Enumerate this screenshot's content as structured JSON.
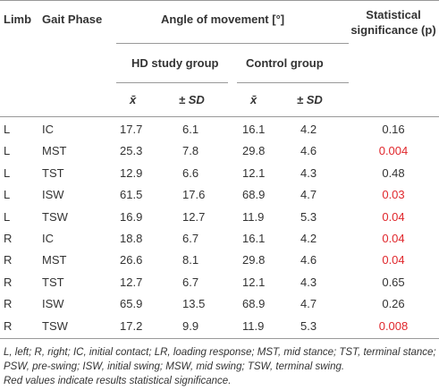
{
  "table": {
    "headers": {
      "limb": "Limb",
      "gait_phase": "Gait Phase",
      "angle": "Angle of movement [°]",
      "significance": "Statistical significance (p)",
      "hd": "HD study group",
      "control": "Control group",
      "mean_hd": "x̄",
      "sd_hd": "± SD",
      "mean_control": "x̄",
      "sd_control": "± SD"
    },
    "rows": [
      [
        "L",
        "IC",
        "17.7",
        "6.1",
        "16.1",
        "4.2",
        "0.16"
      ],
      [
        "L",
        "MST",
        "25.3",
        "7.8",
        "29.8",
        "4.6",
        "0.004"
      ],
      [
        "L",
        "TST",
        "12.9",
        "6.6",
        "12.1",
        "4.3",
        "0.48"
      ],
      [
        "L",
        "ISW",
        "61.5",
        "17.6",
        "68.9",
        "4.7",
        "0.03"
      ],
      [
        "L",
        "TSW",
        "16.9",
        "12.7",
        "11.9",
        "5.3",
        "0.04"
      ],
      [
        "R",
        "IC",
        "18.8",
        "6.7",
        "16.1",
        "4.2",
        "0.04"
      ],
      [
        "R",
        "MST",
        "26.6",
        "8.1",
        "29.8",
        "4.6",
        "0.04"
      ],
      [
        "R",
        "TST",
        "12.7",
        "6.7",
        "12.1",
        "4.3",
        "0.65"
      ],
      [
        "R",
        "ISW",
        "65.9",
        "13.5",
        "68.9",
        "4.7",
        "0.26"
      ],
      [
        "R",
        "TSW",
        "17.2",
        "9.9",
        "11.9",
        "5.3",
        "0.008"
      ]
    ]
  },
  "footnote": {
    "abbreviations": "L, left; R, right; IC, initial contact; LR, loading response; MST, mid stance; TST, terminal stance; PSW, pre-swing; ISW, initial swing; MSW, mid swing; TSW, terminal swing.",
    "note": "Red values indicate results statistical significance."
  }
}
